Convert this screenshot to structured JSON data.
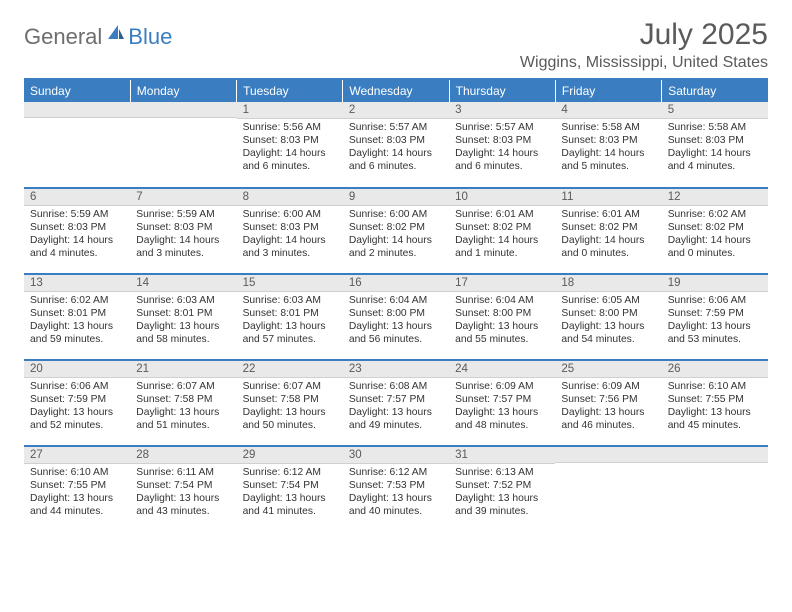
{
  "logo": {
    "word1": "General",
    "word2": "Blue"
  },
  "title": "July 2025",
  "location": "Wiggins, Mississippi, United States",
  "colors": {
    "accent": "#3a7ec1",
    "header_text": "#ffffff",
    "daynum_bg": "#e9e9e9",
    "text_muted": "#5a5a5a",
    "body_text": "#333333",
    "background": "#ffffff"
  },
  "fonts": {
    "title_size": 30,
    "location_size": 16,
    "dayhead_size": 12,
    "body_size": 10.3
  },
  "day_headers": [
    "Sunday",
    "Monday",
    "Tuesday",
    "Wednesday",
    "Thursday",
    "Friday",
    "Saturday"
  ],
  "weeks": [
    [
      {
        "num": "",
        "lines": []
      },
      {
        "num": "",
        "lines": []
      },
      {
        "num": "1",
        "lines": [
          "Sunrise: 5:56 AM",
          "Sunset: 8:03 PM",
          "Daylight: 14 hours",
          "and 6 minutes."
        ]
      },
      {
        "num": "2",
        "lines": [
          "Sunrise: 5:57 AM",
          "Sunset: 8:03 PM",
          "Daylight: 14 hours",
          "and 6 minutes."
        ]
      },
      {
        "num": "3",
        "lines": [
          "Sunrise: 5:57 AM",
          "Sunset: 8:03 PM",
          "Daylight: 14 hours",
          "and 6 minutes."
        ]
      },
      {
        "num": "4",
        "lines": [
          "Sunrise: 5:58 AM",
          "Sunset: 8:03 PM",
          "Daylight: 14 hours",
          "and 5 minutes."
        ]
      },
      {
        "num": "5",
        "lines": [
          "Sunrise: 5:58 AM",
          "Sunset: 8:03 PM",
          "Daylight: 14 hours",
          "and 4 minutes."
        ]
      }
    ],
    [
      {
        "num": "6",
        "lines": [
          "Sunrise: 5:59 AM",
          "Sunset: 8:03 PM",
          "Daylight: 14 hours",
          "and 4 minutes."
        ]
      },
      {
        "num": "7",
        "lines": [
          "Sunrise: 5:59 AM",
          "Sunset: 8:03 PM",
          "Daylight: 14 hours",
          "and 3 minutes."
        ]
      },
      {
        "num": "8",
        "lines": [
          "Sunrise: 6:00 AM",
          "Sunset: 8:03 PM",
          "Daylight: 14 hours",
          "and 3 minutes."
        ]
      },
      {
        "num": "9",
        "lines": [
          "Sunrise: 6:00 AM",
          "Sunset: 8:02 PM",
          "Daylight: 14 hours",
          "and 2 minutes."
        ]
      },
      {
        "num": "10",
        "lines": [
          "Sunrise: 6:01 AM",
          "Sunset: 8:02 PM",
          "Daylight: 14 hours",
          "and 1 minute."
        ]
      },
      {
        "num": "11",
        "lines": [
          "Sunrise: 6:01 AM",
          "Sunset: 8:02 PM",
          "Daylight: 14 hours",
          "and 0 minutes."
        ]
      },
      {
        "num": "12",
        "lines": [
          "Sunrise: 6:02 AM",
          "Sunset: 8:02 PM",
          "Daylight: 14 hours",
          "and 0 minutes."
        ]
      }
    ],
    [
      {
        "num": "13",
        "lines": [
          "Sunrise: 6:02 AM",
          "Sunset: 8:01 PM",
          "Daylight: 13 hours",
          "and 59 minutes."
        ]
      },
      {
        "num": "14",
        "lines": [
          "Sunrise: 6:03 AM",
          "Sunset: 8:01 PM",
          "Daylight: 13 hours",
          "and 58 minutes."
        ]
      },
      {
        "num": "15",
        "lines": [
          "Sunrise: 6:03 AM",
          "Sunset: 8:01 PM",
          "Daylight: 13 hours",
          "and 57 minutes."
        ]
      },
      {
        "num": "16",
        "lines": [
          "Sunrise: 6:04 AM",
          "Sunset: 8:00 PM",
          "Daylight: 13 hours",
          "and 56 minutes."
        ]
      },
      {
        "num": "17",
        "lines": [
          "Sunrise: 6:04 AM",
          "Sunset: 8:00 PM",
          "Daylight: 13 hours",
          "and 55 minutes."
        ]
      },
      {
        "num": "18",
        "lines": [
          "Sunrise: 6:05 AM",
          "Sunset: 8:00 PM",
          "Daylight: 13 hours",
          "and 54 minutes."
        ]
      },
      {
        "num": "19",
        "lines": [
          "Sunrise: 6:06 AM",
          "Sunset: 7:59 PM",
          "Daylight: 13 hours",
          "and 53 minutes."
        ]
      }
    ],
    [
      {
        "num": "20",
        "lines": [
          "Sunrise: 6:06 AM",
          "Sunset: 7:59 PM",
          "Daylight: 13 hours",
          "and 52 minutes."
        ]
      },
      {
        "num": "21",
        "lines": [
          "Sunrise: 6:07 AM",
          "Sunset: 7:58 PM",
          "Daylight: 13 hours",
          "and 51 minutes."
        ]
      },
      {
        "num": "22",
        "lines": [
          "Sunrise: 6:07 AM",
          "Sunset: 7:58 PM",
          "Daylight: 13 hours",
          "and 50 minutes."
        ]
      },
      {
        "num": "23",
        "lines": [
          "Sunrise: 6:08 AM",
          "Sunset: 7:57 PM",
          "Daylight: 13 hours",
          "and 49 minutes."
        ]
      },
      {
        "num": "24",
        "lines": [
          "Sunrise: 6:09 AM",
          "Sunset: 7:57 PM",
          "Daylight: 13 hours",
          "and 48 minutes."
        ]
      },
      {
        "num": "25",
        "lines": [
          "Sunrise: 6:09 AM",
          "Sunset: 7:56 PM",
          "Daylight: 13 hours",
          "and 46 minutes."
        ]
      },
      {
        "num": "26",
        "lines": [
          "Sunrise: 6:10 AM",
          "Sunset: 7:55 PM",
          "Daylight: 13 hours",
          "and 45 minutes."
        ]
      }
    ],
    [
      {
        "num": "27",
        "lines": [
          "Sunrise: 6:10 AM",
          "Sunset: 7:55 PM",
          "Daylight: 13 hours",
          "and 44 minutes."
        ]
      },
      {
        "num": "28",
        "lines": [
          "Sunrise: 6:11 AM",
          "Sunset: 7:54 PM",
          "Daylight: 13 hours",
          "and 43 minutes."
        ]
      },
      {
        "num": "29",
        "lines": [
          "Sunrise: 6:12 AM",
          "Sunset: 7:54 PM",
          "Daylight: 13 hours",
          "and 41 minutes."
        ]
      },
      {
        "num": "30",
        "lines": [
          "Sunrise: 6:12 AM",
          "Sunset: 7:53 PM",
          "Daylight: 13 hours",
          "and 40 minutes."
        ]
      },
      {
        "num": "31",
        "lines": [
          "Sunrise: 6:13 AM",
          "Sunset: 7:52 PM",
          "Daylight: 13 hours",
          "and 39 minutes."
        ]
      },
      {
        "num": "",
        "lines": []
      },
      {
        "num": "",
        "lines": []
      }
    ]
  ]
}
